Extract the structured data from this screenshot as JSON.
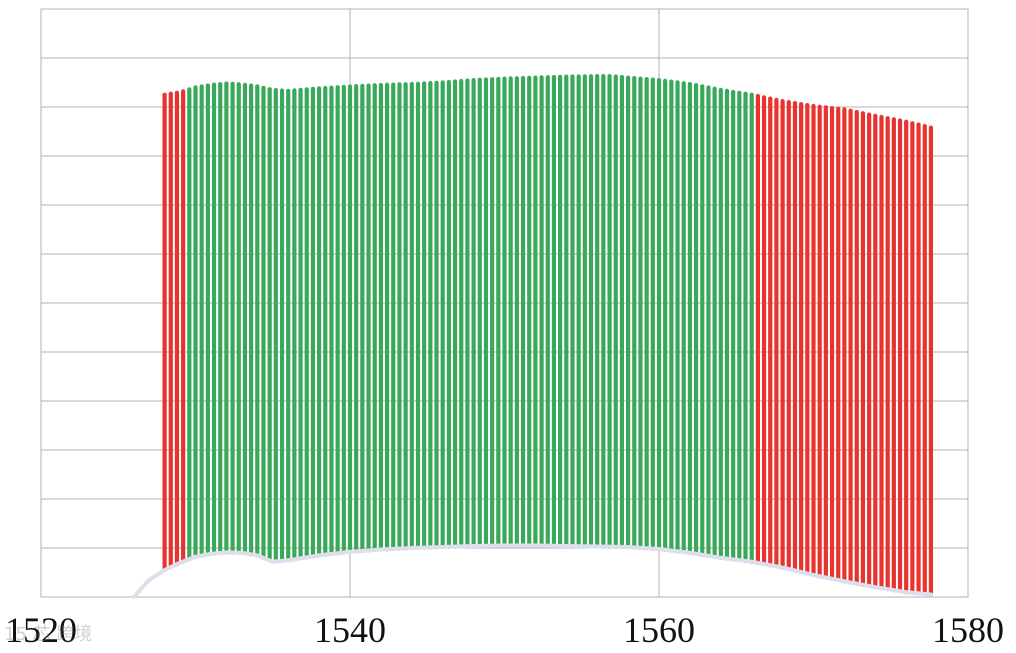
{
  "chart_data": {
    "type": "bar",
    "title": "",
    "xlabel": "",
    "ylabel": "",
    "xlim": [
      1520,
      1580
    ],
    "x_ticks": [
      1520,
      1540,
      1560,
      1580
    ],
    "y_gridlines": 12,
    "grid": true,
    "colors": {
      "out_of_band": "#e8332f",
      "in_band": "#3aa85a",
      "noise_floor": "#dde0ec",
      "grid": "#b3b3b3"
    },
    "bands": [
      {
        "color_key": "out_of_band",
        "x_start": 1528.0,
        "x_end": 1529.4
      },
      {
        "color_key": "in_band",
        "x_start": 1529.4,
        "x_end": 1566.2
      },
      {
        "color_key": "out_of_band",
        "x_start": 1566.2,
        "x_end": 1577.6
      }
    ],
    "line_spacing": 0.4,
    "first_line": 1528.0,
    "last_line": 1577.6,
    "peak_envelope": [
      [
        1528.0,
        10.25
      ],
      [
        1529.0,
        10.3
      ],
      [
        1530.0,
        10.4
      ],
      [
        1531.0,
        10.45
      ],
      [
        1532.0,
        10.48
      ],
      [
        1533.0,
        10.46
      ],
      [
        1534.0,
        10.42
      ],
      [
        1535.0,
        10.35
      ],
      [
        1536.0,
        10.33
      ],
      [
        1538.0,
        10.38
      ],
      [
        1540.0,
        10.42
      ],
      [
        1542.0,
        10.45
      ],
      [
        1544.0,
        10.47
      ],
      [
        1546.0,
        10.5
      ],
      [
        1548.0,
        10.55
      ],
      [
        1550.0,
        10.58
      ],
      [
        1552.0,
        10.6
      ],
      [
        1554.0,
        10.62
      ],
      [
        1556.0,
        10.63
      ],
      [
        1557.0,
        10.63
      ],
      [
        1558.0,
        10.6
      ],
      [
        1560.0,
        10.55
      ],
      [
        1562.0,
        10.47
      ],
      [
        1564.0,
        10.35
      ],
      [
        1566.0,
        10.25
      ],
      [
        1568.0,
        10.12
      ],
      [
        1570.0,
        10.02
      ],
      [
        1572.0,
        9.95
      ],
      [
        1574.0,
        9.82
      ],
      [
        1576.0,
        9.7
      ],
      [
        1577.6,
        9.58
      ]
    ],
    "floor_envelope": [
      [
        1526.0,
        0.0
      ],
      [
        1527.0,
        0.35
      ],
      [
        1528.0,
        0.55
      ],
      [
        1529.0,
        0.7
      ],
      [
        1530.0,
        0.82
      ],
      [
        1531.0,
        0.88
      ],
      [
        1532.0,
        0.91
      ],
      [
        1533.0,
        0.9
      ],
      [
        1534.0,
        0.85
      ],
      [
        1535.0,
        0.72
      ],
      [
        1536.0,
        0.75
      ],
      [
        1538.0,
        0.85
      ],
      [
        1540.0,
        0.92
      ],
      [
        1542.0,
        0.97
      ],
      [
        1544.0,
        1.0
      ],
      [
        1546.0,
        1.02
      ],
      [
        1548.0,
        1.04
      ],
      [
        1550.0,
        1.05
      ],
      [
        1552.0,
        1.05
      ],
      [
        1554.0,
        1.04
      ],
      [
        1556.0,
        1.03
      ],
      [
        1558.0,
        1.02
      ],
      [
        1560.0,
        0.98
      ],
      [
        1562.0,
        0.9
      ],
      [
        1564.0,
        0.8
      ],
      [
        1566.0,
        0.72
      ],
      [
        1568.0,
        0.6
      ],
      [
        1570.0,
        0.45
      ],
      [
        1572.0,
        0.32
      ],
      [
        1574.0,
        0.2
      ],
      [
        1576.0,
        0.1
      ],
      [
        1577.6,
        0.05
      ]
    ],
    "ylim": [
      0,
      12
    ]
  },
  "watermark": "15 芯 跨境"
}
